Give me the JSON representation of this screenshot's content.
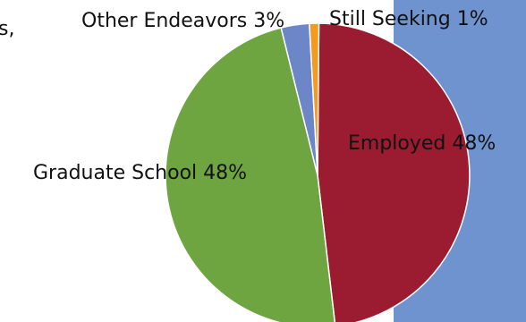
{
  "page": {
    "fragment_text": "s,",
    "panel_color": "#6f93cf"
  },
  "chart_data": {
    "type": "pie",
    "title": "",
    "slices": [
      {
        "label": "Employed",
        "value": 48,
        "display": "Employed 48%",
        "color": "#9b1b30"
      },
      {
        "label": "Graduate School",
        "value": 48,
        "display": "Graduate School 48%",
        "color": "#6ea541"
      },
      {
        "label": "Other Endeavors",
        "value": 3,
        "display": "Other Endeavors 3%",
        "color": "#6d86c7"
      },
      {
        "label": "Still Seeking",
        "value": 1,
        "display": "Still Seeking 1%",
        "color": "#f39a1f"
      }
    ]
  }
}
